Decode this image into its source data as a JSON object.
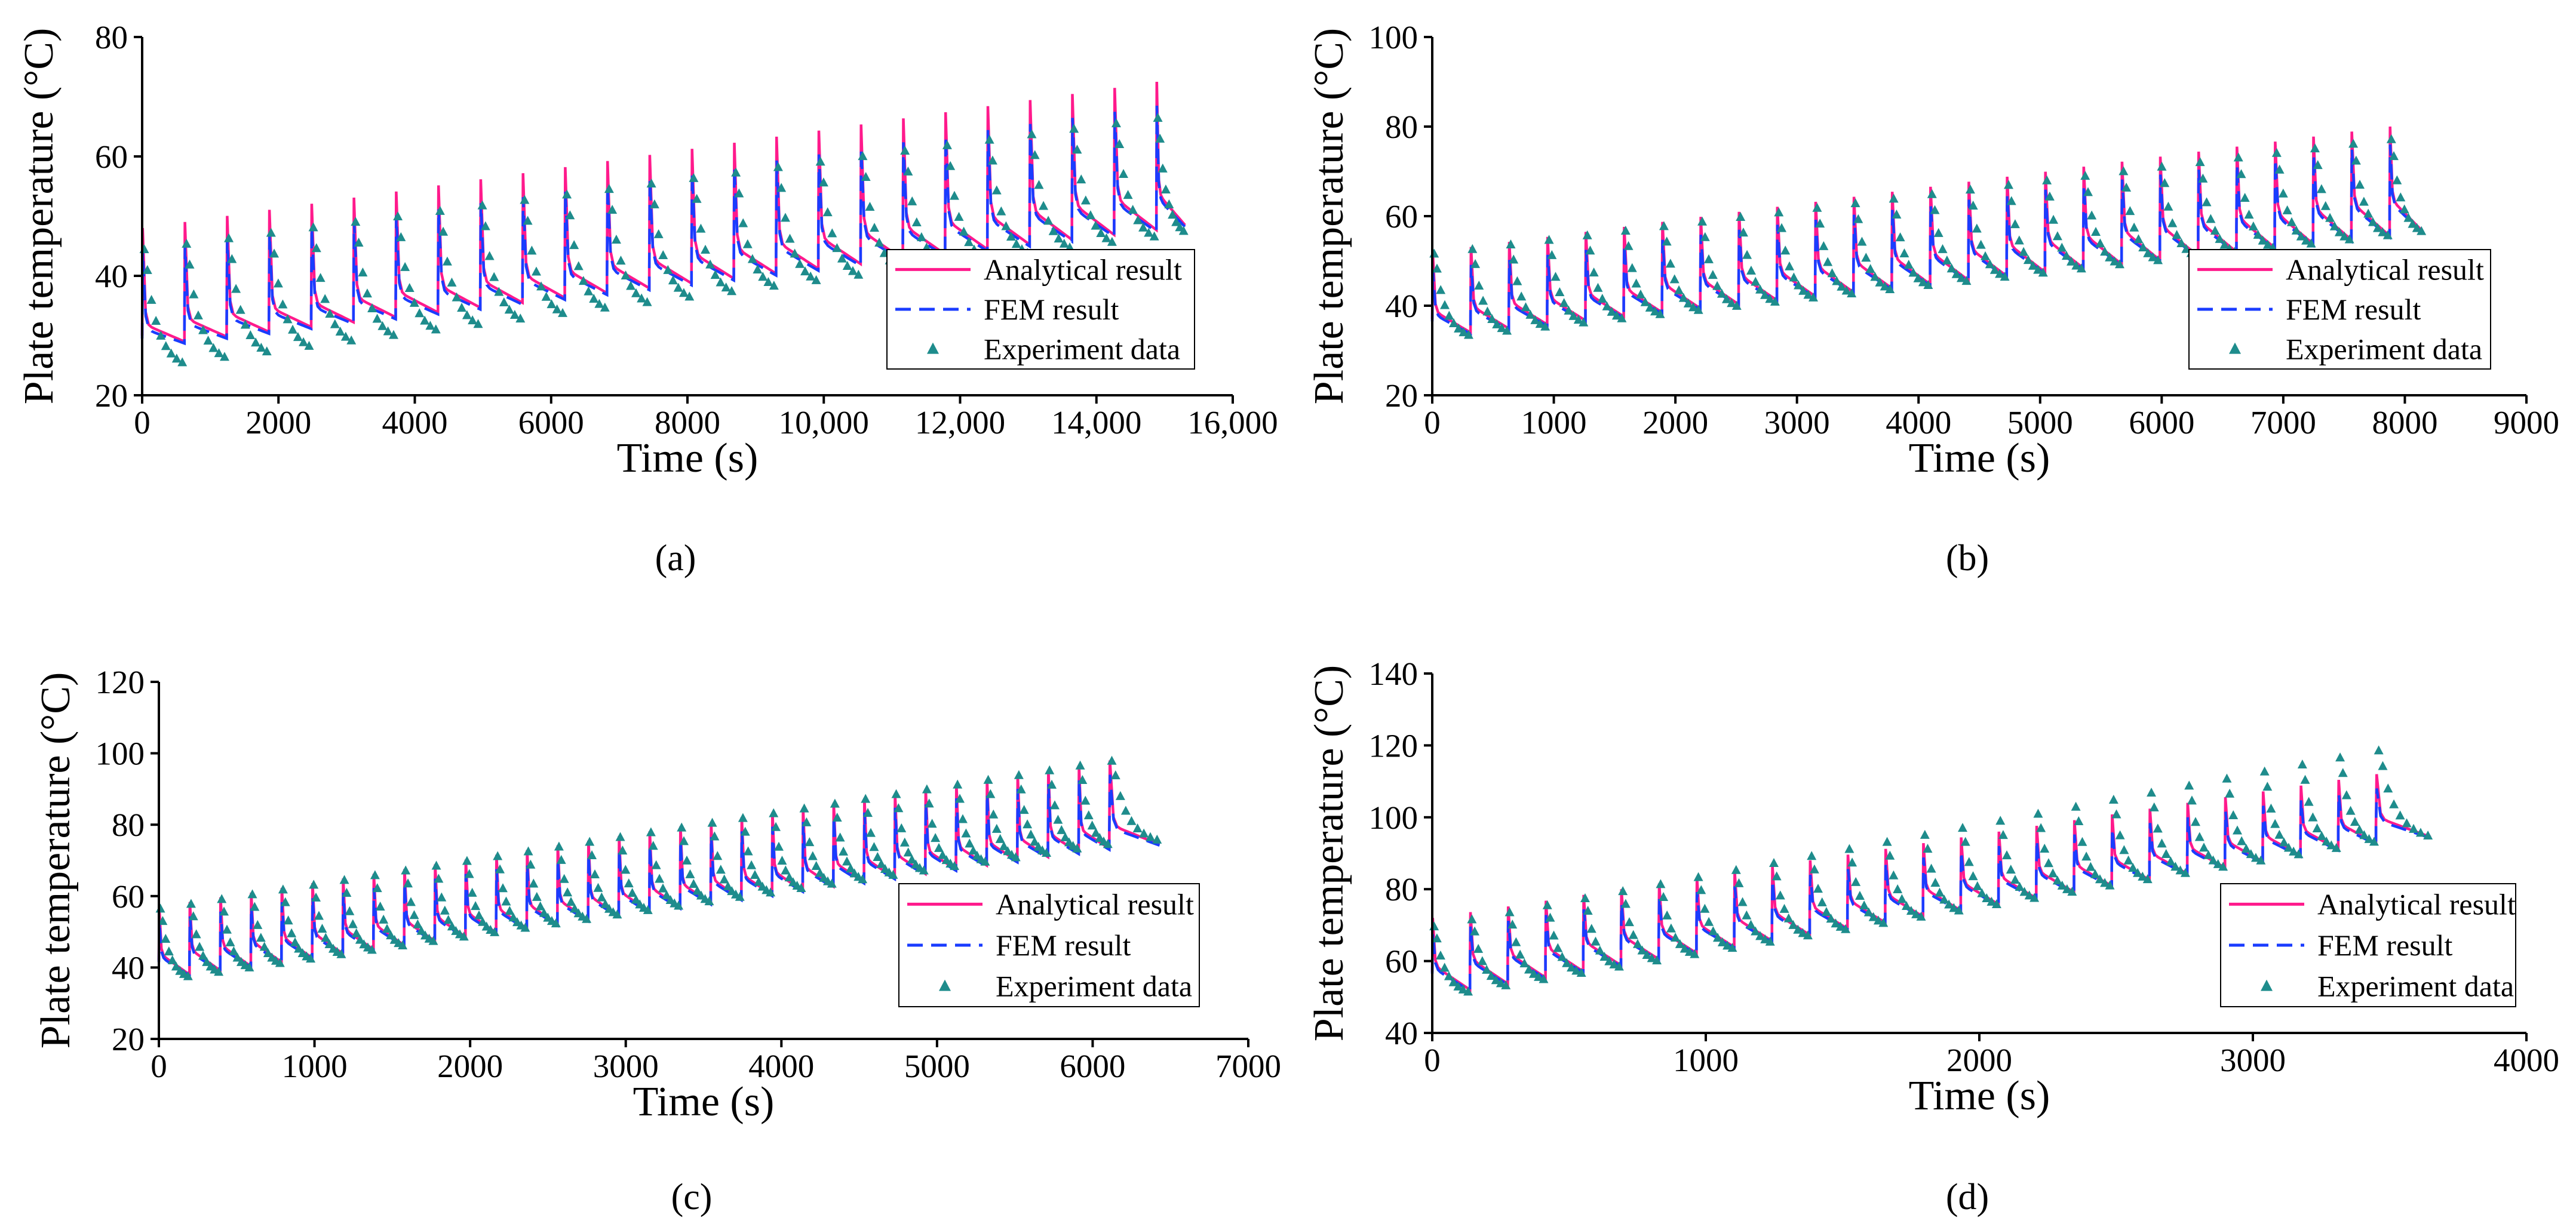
{
  "colors": {
    "analytical": "#ff1a8c",
    "fem": "#1a3cff",
    "experiment": "#1e8c8c"
  },
  "legend": {
    "analytical": "Analytical result",
    "fem": "FEM result",
    "experiment": "Experiment data"
  },
  "chart_data": [
    {
      "id": "a",
      "label": "(a)",
      "type": "line",
      "xlabel": "Time (s)",
      "ylabel": "Plate temperature (°C)",
      "xlim": [
        0,
        16000
      ],
      "ylim": [
        20,
        80
      ],
      "xticks": [
        0,
        2000,
        4000,
        6000,
        8000,
        10000,
        12000,
        14000,
        16000
      ],
      "xtick_labels": [
        "0",
        "2000",
        "4000",
        "6000",
        "8000",
        "10,000",
        "12,000",
        "14,000",
        "16,000"
      ],
      "yticks": [
        20,
        40,
        60,
        80
      ],
      "legend_position": "right-middle",
      "cycle": {
        "t_start": 0,
        "period": 620,
        "cycles": 25,
        "t_end": 15300,
        "peak_start": 48,
        "peak_end": 72.5,
        "baseline_start": 30,
        "baseline_end": 52,
        "end_start": 29,
        "end_end": 48.5,
        "exp_peak_start": 48,
        "exp_peak_end": 70,
        "exp_min_start": 24,
        "exp_min_end": 46
      }
    },
    {
      "id": "b",
      "label": "(b)",
      "type": "line",
      "xlabel": "Time (s)",
      "ylabel": "Plate temperature (°C)",
      "xlim": [
        0,
        9000
      ],
      "ylim": [
        20,
        100
      ],
      "xticks": [
        0,
        1000,
        2000,
        3000,
        4000,
        5000,
        6000,
        7000,
        8000,
        9000
      ],
      "xtick_labels": [
        "0",
        "1000",
        "2000",
        "3000",
        "4000",
        "5000",
        "6000",
        "7000",
        "8000",
        "9000"
      ],
      "yticks": [
        20,
        40,
        60,
        80,
        100
      ],
      "legend_position": "right-middle",
      "cycle": {
        "t_start": 0,
        "period": 315,
        "cycles": 26,
        "t_end": 8150,
        "peak_start": 52,
        "peak_end": 80,
        "baseline_start": 37,
        "baseline_end": 62,
        "end_start": 34,
        "end_end": 56.5,
        "exp_peak_start": 55,
        "exp_peak_end": 81,
        "exp_min_start": 32,
        "exp_min_end": 55
      }
    },
    {
      "id": "c",
      "label": "(c)",
      "type": "line",
      "xlabel": "Time (s)",
      "ylabel": "Plate temperature (°C)",
      "xlim": [
        0,
        7000
      ],
      "ylim": [
        20,
        120
      ],
      "xticks": [
        0,
        1000,
        2000,
        3000,
        4000,
        5000,
        6000,
        7000
      ],
      "xtick_labels": [
        "0",
        "1000",
        "2000",
        "3000",
        "4000",
        "5000",
        "6000",
        "7000"
      ],
      "yticks": [
        20,
        40,
        60,
        80,
        100,
        120
      ],
      "legend_position": "bottom-right",
      "cycle": {
        "t_start": 0,
        "period": 197,
        "cycles": 32,
        "t_end": 6430,
        "peak_start": 57,
        "peak_end": 98,
        "baseline_start": 42,
        "baseline_end": 78,
        "end_start": 38,
        "end_end": 74.5,
        "exp_peak_start": 60,
        "exp_peak_end": 102,
        "exp_min_start": 36,
        "exp_min_end": 74
      }
    },
    {
      "id": "d",
      "label": "(d)",
      "type": "line",
      "xlabel": "Time (s)",
      "ylabel": "Plate temperature (°C)",
      "xlim": [
        0,
        4000
      ],
      "ylim": [
        40,
        140
      ],
      "xticks": [
        0,
        1000,
        2000,
        3000,
        4000
      ],
      "xtick_labels": [
        "0",
        "1000",
        "2000",
        "3000",
        "4000"
      ],
      "yticks": [
        40,
        60,
        80,
        100,
        120,
        140
      ],
      "legend_position": "bottom-right",
      "cycle": {
        "t_start": 0,
        "period": 138,
        "cycles": 26,
        "t_end": 3650,
        "peak_start": 72,
        "peak_end": 112,
        "baseline_start": 57,
        "baseline_end": 98,
        "end_start": 52,
        "end_end": 94.5,
        "exp_peak_start": 73,
        "exp_peak_end": 123,
        "exp_min_start": 50,
        "exp_min_end": 93
      }
    }
  ]
}
